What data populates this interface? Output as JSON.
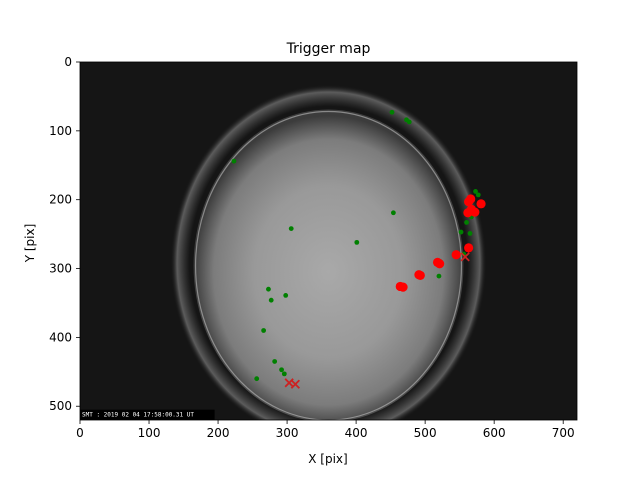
{
  "chart_data": {
    "type": "scatter",
    "title": "Trigger map",
    "xlabel": "X [pix]",
    "ylabel": "Y [pix]",
    "xlim": [
      0,
      720
    ],
    "ylim": [
      520,
      0
    ],
    "y_inverted": true,
    "xticks": [
      0,
      100,
      200,
      300,
      400,
      500,
      600,
      700
    ],
    "yticks": [
      0,
      100,
      200,
      300,
      400,
      500
    ],
    "grid": false,
    "background": "all-sky camera image (grayscale fisheye)",
    "image_timestamp": "SMT : 2019 02 04 17:58:00.31 UT",
    "series": [
      {
        "marker": "small-circle",
        "color": "#008000",
        "points": [
          [
            452,
            73
          ],
          [
            473,
            84
          ],
          [
            477,
            87
          ],
          [
            223,
            144
          ],
          [
            573,
            188
          ],
          [
            577,
            193
          ],
          [
            454,
            219
          ],
          [
            306,
            242
          ],
          [
            401,
            262
          ],
          [
            567,
            225
          ],
          [
            560,
            233
          ],
          [
            565,
            249
          ],
          [
            552,
            247
          ],
          [
            556,
            279
          ],
          [
            522,
            290
          ],
          [
            520,
            311
          ],
          [
            273,
            330
          ],
          [
            298,
            339
          ],
          [
            277,
            346
          ],
          [
            266,
            390
          ],
          [
            282,
            435
          ],
          [
            292,
            447
          ],
          [
            296,
            453
          ],
          [
            256,
            460
          ]
        ]
      },
      {
        "marker": "large-circle",
        "color": "#ff0000",
        "points": [
          [
            566,
            199
          ],
          [
            563,
            203
          ],
          [
            581,
            206
          ],
          [
            567,
            214
          ],
          [
            562,
            219
          ],
          [
            572,
            218
          ],
          [
            563,
            270
          ],
          [
            545,
            280
          ],
          [
            518,
            291
          ],
          [
            521,
            293
          ],
          [
            491,
            309
          ],
          [
            493,
            310
          ],
          [
            464,
            326
          ],
          [
            468,
            327
          ]
        ]
      },
      {
        "marker": "x",
        "color": "#cc2222",
        "points": [
          [
            558,
            283
          ],
          [
            303,
            466
          ],
          [
            312,
            468
          ]
        ]
      }
    ]
  }
}
